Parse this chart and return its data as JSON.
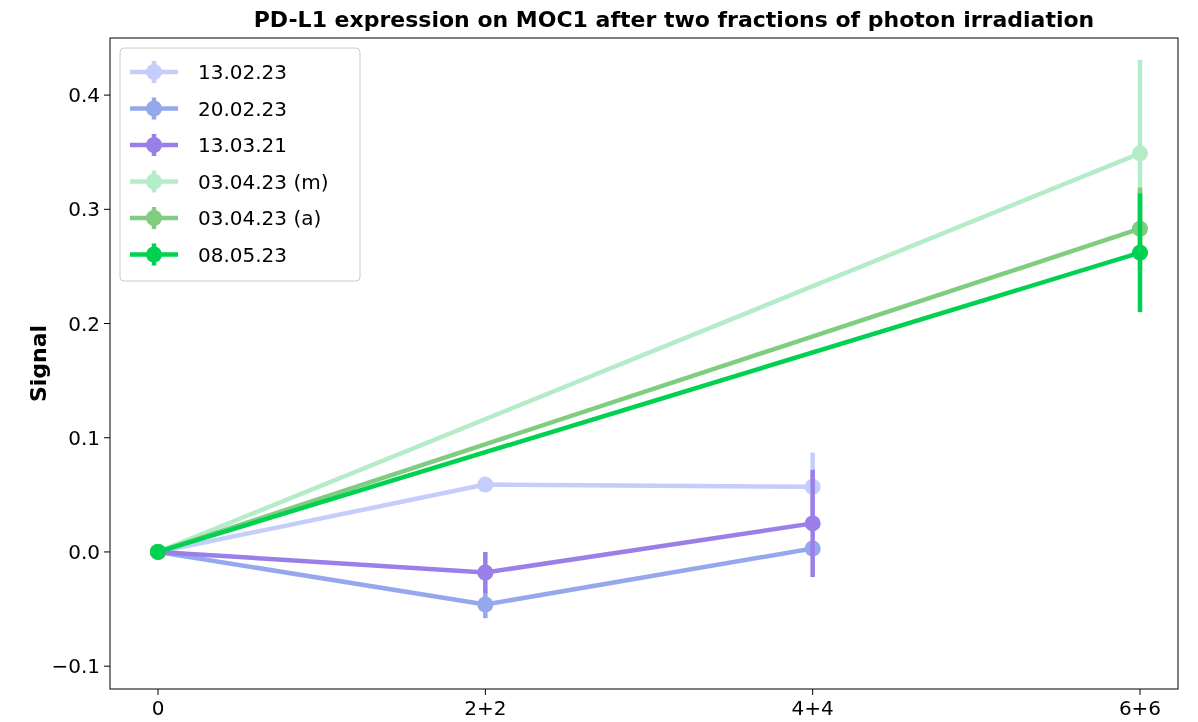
{
  "chart_data": {
    "type": "line",
    "title": "PD-L1 expression on MOC1 after two fractions of photon irradiation",
    "ylabel": "Signal",
    "categories": [
      "0",
      "2+2",
      "4+4",
      "6+6"
    ],
    "ylim": [
      -0.12,
      0.45
    ],
    "yticks": [
      {
        "value": -0.1,
        "label": "−0.1"
      },
      {
        "value": 0,
        "label": "0.0"
      },
      0.1,
      0.2,
      0.3,
      0.4
    ],
    "series": [
      {
        "name": "13.02.23",
        "color": "#c5cdfb",
        "x": [
          "0",
          "2+2",
          "4+4"
        ],
        "values": [
          0,
          0.059,
          0.057
        ],
        "errors": [
          null,
          null,
          0.03
        ]
      },
      {
        "name": "20.02.23",
        "color": "#95a8ec",
        "x": [
          "0",
          "2+2",
          "4+4"
        ],
        "values": [
          0,
          -0.046,
          0.003
        ],
        "errors": [
          null,
          0.012,
          null
        ]
      },
      {
        "name": "13.03.21",
        "color": "#9b7fe8",
        "x": [
          "0",
          "2+2",
          "4+4"
        ],
        "values": [
          0,
          -0.018,
          0.025
        ],
        "errors": [
          null,
          0.018,
          0.047
        ]
      },
      {
        "name": "03.04.23 (m)",
        "color": "#b5ecc8",
        "x": [
          "0",
          "6+6"
        ],
        "values": [
          0,
          0.349
        ],
        "errors": [
          null,
          0.082
        ]
      },
      {
        "name": "03.04.23 (a)",
        "color": "#80cc80",
        "x": [
          "0",
          "6+6"
        ],
        "values": [
          0,
          0.283
        ],
        "errors": [
          null,
          0.036
        ]
      },
      {
        "name": "08.05.23",
        "color": "#00d150",
        "x": [
          "0",
          "6+6"
        ],
        "values": [
          0,
          0.262
        ],
        "errors": [
          null,
          0.052
        ]
      }
    ],
    "grid": false,
    "legend": "top left",
    "marker": "circle",
    "line_style": "solid"
  }
}
